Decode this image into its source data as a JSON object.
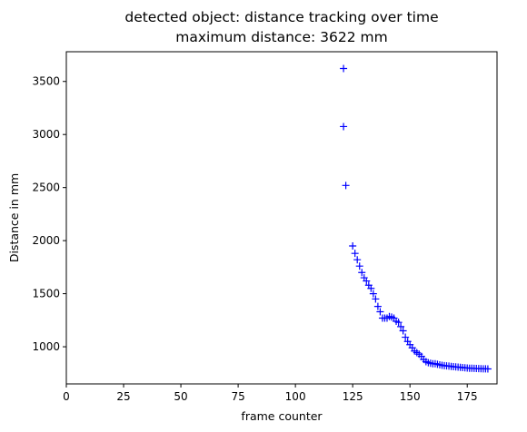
{
  "chart_data": {
    "type": "scatter",
    "title": "detected object: distance tracking over time",
    "subtitle": "maximum distance: 3622 mm",
    "xlabel": "frame counter",
    "ylabel": "Distance in mm",
    "xlim": [
      0,
      188
    ],
    "ylim": [
      650,
      3780
    ],
    "xticks": [
      0,
      25,
      50,
      75,
      100,
      125,
      150,
      175
    ],
    "yticks": [
      1000,
      1500,
      2000,
      2500,
      3000,
      3500
    ],
    "grid": false,
    "marker": "+",
    "color": "#0000ff",
    "series": [
      {
        "x": [
          121,
          121,
          122,
          125,
          126,
          127,
          128,
          129,
          130,
          131,
          132,
          133,
          134,
          135,
          136,
          137,
          138,
          139,
          140,
          141,
          142,
          143,
          144,
          145,
          146,
          147,
          148,
          149,
          150,
          151,
          152,
          153,
          154,
          155,
          156,
          157,
          158,
          159,
          160,
          161,
          162,
          163,
          164,
          165,
          166,
          167,
          168,
          169,
          170,
          171,
          172,
          173,
          174,
          175,
          176,
          177,
          178,
          179,
          180,
          181,
          182,
          183,
          184
        ],
        "y": [
          3622,
          3075,
          2520,
          1950,
          1880,
          1820,
          1760,
          1700,
          1650,
          1620,
          1580,
          1550,
          1500,
          1450,
          1380,
          1330,
          1270,
          1270,
          1270,
          1285,
          1280,
          1270,
          1240,
          1230,
          1190,
          1150,
          1090,
          1050,
          1020,
          990,
          960,
          945,
          930,
          910,
          880,
          860,
          850,
          845,
          840,
          840,
          835,
          830,
          825,
          822,
          820,
          818,
          815,
          812,
          810,
          808,
          806,
          804,
          802,
          800,
          798,
          797,
          796,
          795,
          794,
          793,
          792,
          792,
          791
        ]
      }
    ]
  }
}
